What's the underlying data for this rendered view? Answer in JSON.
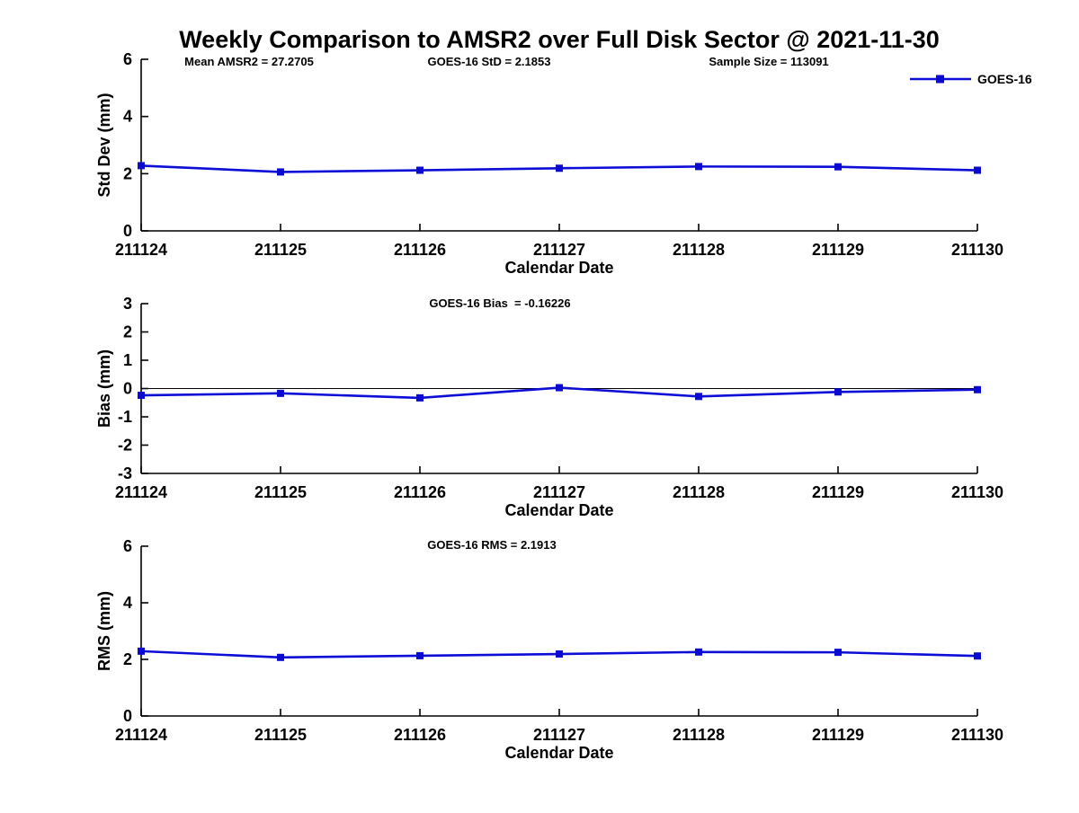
{
  "title": "Weekly Comparison to AMSR2 over Full Disk Sector @ 2021-11-30",
  "header": {
    "mean_amsr2": "Mean AMSR2 = 27.2705",
    "goes16_std": "GOES-16 StD = 2.1853",
    "sample_size": "Sample Size = 113091"
  },
  "legend": {
    "label": "GOES-16",
    "position": "top-right"
  },
  "colors": {
    "line": "#0d0dd8",
    "marker": "#0a0ad0",
    "axis": "#000000",
    "zero_line": "#000000",
    "background": "#ffffff",
    "text": "#000000"
  },
  "chart_data": [
    {
      "type": "line",
      "title": "",
      "ylabel": "Std Dev (mm)",
      "xlabel": "Calendar Date",
      "categories": [
        "211124",
        "211125",
        "211126",
        "211127",
        "211128",
        "211129",
        "211130"
      ],
      "series": [
        {
          "name": "GOES-16",
          "values": [
            2.28,
            2.06,
            2.12,
            2.19,
            2.25,
            2.24,
            2.12
          ]
        }
      ],
      "ylim": [
        0,
        6
      ],
      "yticks": [
        0,
        2,
        4,
        6
      ],
      "grid": false,
      "zero_line": false,
      "legend": "top-right"
    },
    {
      "type": "line",
      "title": "GOES-16 Bias  = -0.16226",
      "ylabel": "Bias (mm)",
      "xlabel": "Calendar Date",
      "categories": [
        "211124",
        "211125",
        "211126",
        "211127",
        "211128",
        "211129",
        "211130"
      ],
      "series": [
        {
          "name": "GOES-16",
          "values": [
            -0.24,
            -0.17,
            -0.33,
            0.03,
            -0.28,
            -0.12,
            -0.04
          ]
        }
      ],
      "ylim": [
        -3,
        3
      ],
      "yticks": [
        -3,
        -2,
        -1,
        0,
        1,
        2,
        3
      ],
      "grid": false,
      "zero_line": true,
      "legend": "none"
    },
    {
      "type": "line",
      "title": "GOES-16 RMS = 2.1913",
      "ylabel": "RMS (mm)",
      "xlabel": "Calendar Date",
      "categories": [
        "211124",
        "211125",
        "211126",
        "211127",
        "211128",
        "211129",
        "211130"
      ],
      "series": [
        {
          "name": "GOES-16",
          "values": [
            2.29,
            2.07,
            2.13,
            2.19,
            2.26,
            2.25,
            2.12
          ]
        }
      ],
      "ylim": [
        0,
        6
      ],
      "yticks": [
        0,
        2,
        4,
        6
      ],
      "grid": false,
      "zero_line": false,
      "legend": "none"
    }
  ]
}
